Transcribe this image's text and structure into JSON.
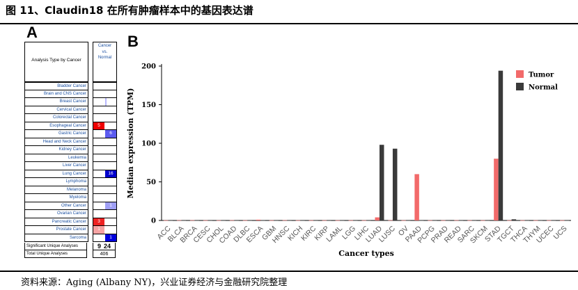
{
  "figure": {
    "title": "图 11、Claudin18 在所有肿瘤样本中的基因表达谱",
    "source": "资料来源：Aging (Albany NY)，兴业证券经济与金融研究院整理"
  },
  "panel_a": {
    "label": "A",
    "header_left": "Analysis Type by Cancer",
    "header_right": [
      "Cancer",
      "vs.",
      "Normal"
    ],
    "rows": [
      {
        "name": "Bladder Cancer",
        "left": "",
        "right": "",
        "left_color": "",
        "right_color": ""
      },
      {
        "name": "Brain and CNS Cancer",
        "left": "",
        "right": "",
        "left_color": "",
        "right_color": ""
      },
      {
        "name": "Breast Cancer",
        "left": "",
        "right": "",
        "left_color": "",
        "right_color": "#b9b9ff"
      },
      {
        "name": "Cervical Cancer",
        "left": "",
        "right": "",
        "left_color": "",
        "right_color": ""
      },
      {
        "name": "Colorectal Cancer",
        "left": "",
        "right": "",
        "left_color": "",
        "right_color": ""
      },
      {
        "name": "Esophageal Cancer",
        "left": "5",
        "right": "",
        "left_color": "#ee0000",
        "right_color": ""
      },
      {
        "name": "Gastric Cancer",
        "left": "",
        "right": "6",
        "left_color": "",
        "right_color": "#5b5bef"
      },
      {
        "name": "Head and Neck Cancer",
        "left": "",
        "right": "",
        "left_color": "",
        "right_color": ""
      },
      {
        "name": "Kidney Cancer",
        "left": "",
        "right": "",
        "left_color": "",
        "right_color": ""
      },
      {
        "name": "Leukemia",
        "left": "",
        "right": "",
        "left_color": "",
        "right_color": ""
      },
      {
        "name": "Liver Cancer",
        "left": "",
        "right": "",
        "left_color": "",
        "right_color": ""
      },
      {
        "name": "Lung Cancer",
        "left": "",
        "right": "16",
        "left_color": "",
        "right_color": "#0000cc"
      },
      {
        "name": "Lymphoma",
        "left": "",
        "right": "",
        "left_color": "",
        "right_color": ""
      },
      {
        "name": "Melanoma",
        "left": "",
        "right": "",
        "left_color": "",
        "right_color": ""
      },
      {
        "name": "Myeloma",
        "left": "",
        "right": "",
        "left_color": "",
        "right_color": ""
      },
      {
        "name": "Other Cancer",
        "left": "",
        "right": "1",
        "left_color": "",
        "right_color": "#9f9ff5"
      },
      {
        "name": "Ovarian Cancer",
        "left": "",
        "right": "",
        "left_color": "",
        "right_color": ""
      },
      {
        "name": "Pancreatic Cancer",
        "left": "3",
        "right": "",
        "left_color": "#ee2222",
        "right_color": ""
      },
      {
        "name": "Prostate Cancer",
        "left": "1",
        "right": "",
        "left_color": "#f6a3a3",
        "right_color": ""
      },
      {
        "name": "Sarcoma",
        "left": "",
        "right": "1",
        "left_color": "",
        "right_color": "#0000dd"
      }
    ],
    "summary": [
      {
        "name": "Significant Unique Analyses",
        "left": "9",
        "right": "24"
      },
      {
        "name": "Total Unique Analyses",
        "value": "406"
      }
    ]
  },
  "chart_data": {
    "type": "bar",
    "panel_label": "B",
    "title": "",
    "xlabel": "Cancer types",
    "ylabel": "Median expression (TPM)",
    "ylim": [
      0,
      200
    ],
    "yticks": [
      0,
      50,
      100,
      150,
      200
    ],
    "grid": false,
    "legend_placement": "top-right",
    "categories": [
      "ACC",
      "BLCA",
      "BRCA",
      "CESC",
      "CHOL",
      "COAD",
      "DLBC",
      "ESCA",
      "GBM",
      "HNSC",
      "KICH",
      "KIRC",
      "KIRP",
      "LAML",
      "LGG",
      "LIHC",
      "LUAD",
      "LUSC",
      "OV",
      "PAAD",
      "PCPG",
      "PRAD",
      "READ",
      "SARC",
      "SKCM",
      "STAD",
      "TGCT",
      "THCA",
      "THYM",
      "UCEC",
      "UCS"
    ],
    "series": [
      {
        "name": "Tumor",
        "color": "#f26a6a",
        "values": [
          0.2,
          0.3,
          0.3,
          0.2,
          0.2,
          0.3,
          0.2,
          1.0,
          0.2,
          0.3,
          0.2,
          0.2,
          0.2,
          0.2,
          0.2,
          0.2,
          4.0,
          0.3,
          0.2,
          60,
          0.2,
          0.2,
          0.3,
          0.2,
          0.2,
          80,
          0.2,
          0.2,
          0.2,
          0.2,
          0.2
        ]
      },
      {
        "name": "Normal",
        "color": "#3a3a3a",
        "values": [
          0.1,
          0.1,
          0.1,
          0.1,
          0.1,
          0.1,
          0.1,
          0.2,
          0.1,
          0.1,
          0.1,
          0.1,
          0.1,
          0.1,
          0.1,
          0.1,
          98,
          93,
          0.1,
          0.1,
          0.1,
          0.1,
          0.1,
          0.1,
          0.1,
          194,
          1.5,
          0.1,
          0.1,
          0.1,
          0.1
        ]
      }
    ]
  }
}
